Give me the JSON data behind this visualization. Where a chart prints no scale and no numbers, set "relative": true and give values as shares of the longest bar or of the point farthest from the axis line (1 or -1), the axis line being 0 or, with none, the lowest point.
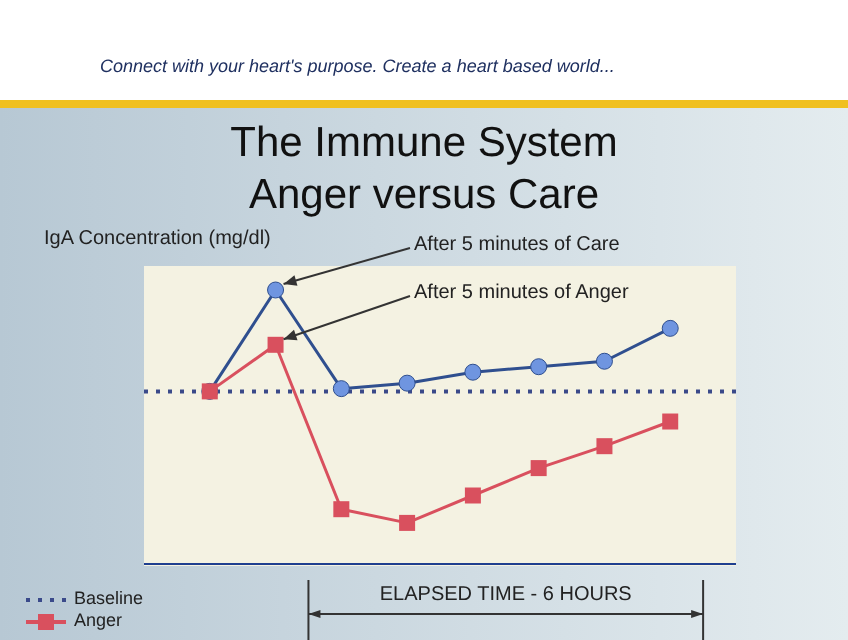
{
  "chart_data": {
    "type": "line",
    "title": "The Immune System",
    "subtitle": "Anger versus Care",
    "ylabel": "IgA Concentration (mg/dl)",
    "xlabel": "ELAPSED TIME - 6 HOURS",
    "relative": true,
    "annotations": [
      "Connect with your heart's purpose. Create a heart based world...",
      "After 5 minutes of Care",
      "After 5 minutes of Anger"
    ],
    "categories": [
      null,
      null,
      null,
      null,
      null,
      null,
      null,
      null,
      null,
      null
    ],
    "series": [
      {
        "color": "#2f4f8f",
        "marker": "circle",
        "values": [
          null,
          0.63,
          1,
          0.64,
          0.66,
          0.7,
          0.72,
          0.74,
          0.86,
          null
        ]
      },
      {
        "name": "Anger",
        "color": "#d9505e",
        "marker": "square",
        "values": [
          null,
          0.63,
          0.8,
          0.2,
          0.15,
          0.25,
          0.35,
          0.43,
          0.52,
          null
        ]
      }
    ],
    "ref_lines": [
      {
        "axis": "y",
        "value": 0.63,
        "label": "Baseline",
        "color": "#3a4a8a",
        "line_style": "dotted"
      }
    ],
    "legend": "bottom left"
  }
}
